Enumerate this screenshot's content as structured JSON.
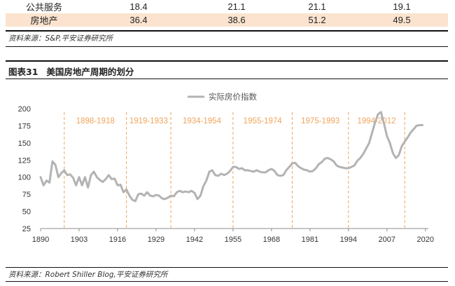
{
  "table": {
    "rows": [
      {
        "label": "公共服务",
        "values": [
          "18.4",
          "21.1",
          "21.1",
          "19.1"
        ],
        "highlight": false
      },
      {
        "label": "房地产",
        "values": [
          "36.4",
          "38.6",
          "51.2",
          "49.5"
        ],
        "highlight": true
      }
    ]
  },
  "source_top": "资料来源：S&P,平安证券研究所",
  "figure": {
    "number": "图表31",
    "title": "美国房地产周期的划分"
  },
  "source_bottom": "资料来源：Robert Shiller Blog,平安证券研究所",
  "chart_data": {
    "type": "line",
    "series": [
      {
        "name": "实际房价指数",
        "color": "#b3b3b3",
        "x": [
          1890,
          1891,
          1892,
          1893,
          1894,
          1895,
          1896,
          1897,
          1898,
          1899,
          1900,
          1901,
          1902,
          1903,
          1904,
          1905,
          1906,
          1907,
          1908,
          1909,
          1910,
          1911,
          1912,
          1913,
          1914,
          1915,
          1916,
          1917,
          1918,
          1919,
          1920,
          1921,
          1922,
          1923,
          1924,
          1925,
          1926,
          1927,
          1928,
          1929,
          1930,
          1931,
          1932,
          1933,
          1934,
          1935,
          1936,
          1937,
          1938,
          1939,
          1940,
          1941,
          1942,
          1943,
          1944,
          1945,
          1946,
          1947,
          1948,
          1949,
          1950,
          1951,
          1952,
          1953,
          1954,
          1955,
          1956,
          1957,
          1958,
          1959,
          1960,
          1961,
          1962,
          1963,
          1964,
          1965,
          1966,
          1967,
          1968,
          1969,
          1970,
          1971,
          1972,
          1973,
          1974,
          1975,
          1976,
          1977,
          1978,
          1979,
          1980,
          1981,
          1982,
          1983,
          1984,
          1985,
          1986,
          1987,
          1988,
          1989,
          1990,
          1991,
          1992,
          1993,
          1994,
          1995,
          1996,
          1997,
          1998,
          1999,
          2000,
          2001,
          2002,
          2003,
          2004,
          2005,
          2006,
          2007,
          2008,
          2009,
          2010,
          2011,
          2012,
          2013,
          2014,
          2015,
          2016,
          2017,
          2018,
          2019
        ],
        "y": [
          100,
          88,
          95,
          92,
          123,
          118,
          100,
          106,
          110,
          103,
          104,
          99,
          88,
          100,
          88,
          100,
          85,
          103,
          108,
          100,
          96,
          93,
          97,
          103,
          97,
          98,
          88,
          89,
          78,
          82,
          73,
          67,
          65,
          75,
          76,
          73,
          78,
          73,
          72,
          74,
          73,
          69,
          68,
          70,
          73,
          72,
          78,
          80,
          78,
          79,
          78,
          80,
          77,
          68,
          73,
          87,
          95,
          108,
          110,
          103,
          102,
          105,
          103,
          105,
          109,
          115,
          115,
          112,
          113,
          110,
          110,
          109,
          108,
          110,
          108,
          107,
          107,
          110,
          112,
          109,
          103,
          102,
          103,
          110,
          115,
          120,
          121,
          116,
          113,
          111,
          110,
          108,
          109,
          113,
          119,
          122,
          127,
          128,
          126,
          123,
          117,
          115,
          114,
          113,
          113,
          115,
          117,
          124,
          128,
          134,
          142,
          150,
          165,
          180,
          192,
          195,
          178,
          160,
          150,
          135,
          128,
          132,
          145,
          152,
          158,
          165,
          170,
          175,
          176,
          176
        ]
      }
    ],
    "xticks": [
      1890,
      1903,
      1916,
      1929,
      1942,
      1955,
      1968,
      1981,
      1994,
      2007,
      2020
    ],
    "yticks": [
      25,
      50,
      75,
      100,
      125,
      150,
      175,
      200
    ],
    "xlim": [
      1890,
      2021
    ],
    "ylim": [
      25,
      200
    ],
    "periods": [
      {
        "label": "1898-1918",
        "start": 1898,
        "end": 1918
      },
      {
        "label": "1919-1933",
        "start": 1919,
        "end": 1933
      },
      {
        "label": "1934-1954",
        "start": 1934,
        "end": 1954
      },
      {
        "label": "1955-1974",
        "start": 1955,
        "end": 1974
      },
      {
        "label": "1975-1993",
        "start": 1975,
        "end": 1993
      },
      {
        "label": "1994-2012",
        "start": 1994,
        "end": 2012
      }
    ],
    "period_color": "#f0a55c",
    "legend_position": "top-center",
    "grid": false
  }
}
